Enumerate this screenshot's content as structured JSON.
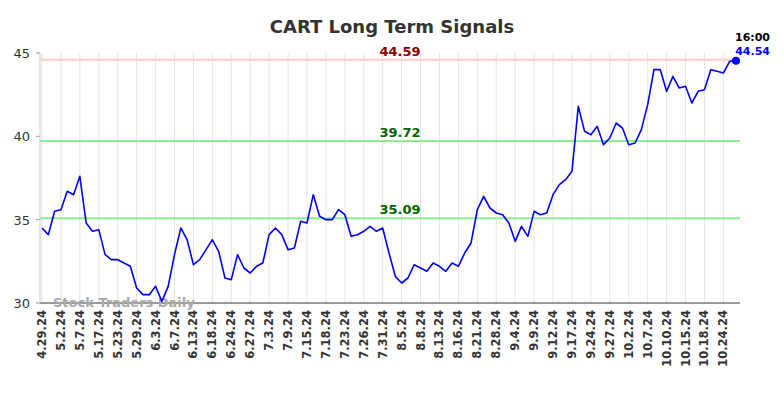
{
  "chart_data": {
    "type": "line",
    "title": "CART Long Term Signals",
    "watermark": "Stock Traders Daily",
    "categories": [
      "4.29.24",
      null,
      null,
      "5.2.24",
      null,
      null,
      "5.7.24",
      null,
      null,
      "5.17.24",
      null,
      null,
      "5.23.24",
      null,
      null,
      "5.29.24",
      null,
      null,
      "6.3.24",
      null,
      null,
      "6.7.24",
      null,
      null,
      "6.13.24",
      null,
      null,
      "6.18.24",
      null,
      null,
      "6.24.24",
      null,
      null,
      "6.27.24",
      null,
      null,
      "7.3.24",
      null,
      null,
      "7.9.24",
      null,
      null,
      "7.15.24",
      null,
      null,
      "7.18.24",
      null,
      null,
      "7.23.24",
      null,
      null,
      "7.26.24",
      null,
      null,
      "7.31.24",
      null,
      null,
      "8.5.24",
      null,
      null,
      "8.8.24",
      null,
      null,
      "8.13.24",
      null,
      null,
      "8.16.24",
      null,
      null,
      "8.21.24",
      null,
      null,
      "8.28.24",
      null,
      null,
      "9.4.24",
      null,
      null,
      "9.9.24",
      null,
      null,
      "9.12.24",
      null,
      null,
      "9.17.24",
      null,
      null,
      "9.24.24",
      null,
      null,
      "9.27.24",
      null,
      null,
      "10.2.24",
      null,
      null,
      "10.7.24",
      null,
      null,
      "10.10.24",
      null,
      null,
      "10.15.24",
      null,
      null,
      "10.18.24",
      null,
      null,
      "10.24.24",
      null,
      null
    ],
    "series": [
      {
        "name": "CART",
        "color": "#0000ff",
        "values": [
          34.5,
          34.1,
          35.5,
          35.6,
          36.7,
          36.5,
          37.6,
          34.8,
          34.3,
          34.4,
          32.9,
          32.6,
          32.6,
          32.4,
          32.2,
          30.9,
          30.5,
          30.5,
          31.0,
          30.1,
          31.0,
          32.9,
          34.5,
          33.8,
          32.3,
          32.6,
          33.2,
          33.8,
          33.1,
          31.5,
          31.4,
          32.9,
          32.1,
          31.8,
          32.2,
          32.4,
          34.1,
          34.5,
          34.1,
          33.2,
          33.3,
          34.9,
          34.8,
          36.5,
          35.2,
          35.0,
          35.0,
          35.6,
          35.3,
          34.0,
          34.1,
          34.3,
          34.6,
          34.3,
          34.5,
          33.0,
          31.6,
          31.2,
          31.5,
          32.3,
          32.1,
          31.9,
          32.4,
          32.2,
          31.9,
          32.4,
          32.2,
          33.0,
          33.6,
          35.6,
          36.4,
          35.7,
          35.4,
          35.3,
          34.8,
          33.7,
          34.6,
          34.0,
          35.5,
          35.3,
          35.4,
          36.5,
          37.1,
          37.4,
          37.9,
          41.8,
          40.3,
          40.1,
          40.6,
          39.5,
          39.9,
          40.8,
          40.5,
          39.5,
          39.6,
          40.4,
          41.9,
          44.0,
          44.0,
          42.7,
          43.6,
          42.9,
          43.0,
          42.0,
          42.7,
          42.8,
          44.0,
          43.9,
          43.8,
          44.5,
          44.54
        ]
      }
    ],
    "reference_lines": [
      {
        "value": 44.59,
        "color": "#ffcccc",
        "label_color": "#8b0000"
      },
      {
        "value": 39.72,
        "color": "#90ee90",
        "label_color": "#006400"
      },
      {
        "value": 35.09,
        "color": "#90ee90",
        "label_color": "#006400"
      }
    ],
    "last_label": {
      "time": "16:00",
      "value": 44.54
    },
    "ylim": [
      30,
      45
    ],
    "yticks": [
      30,
      35,
      40,
      45
    ],
    "grid": true
  }
}
